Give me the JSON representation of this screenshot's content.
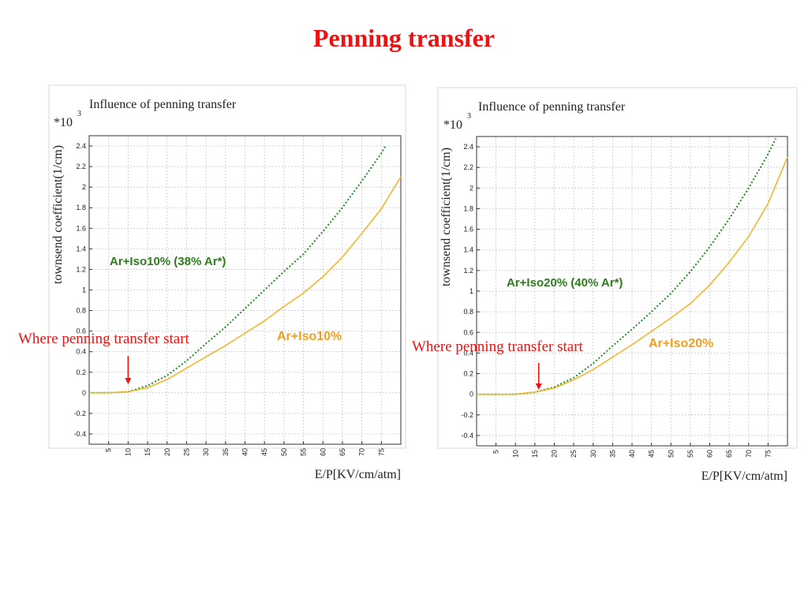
{
  "slide": {
    "title": "Penning transfer"
  },
  "colors": {
    "title": "#ee1111",
    "annotation_red": "#ee1111",
    "dotted_series": "#228b22",
    "solid_series": "#f5b52e",
    "grid": "#c8c8c8"
  },
  "chart_data": [
    {
      "type": "line",
      "title": "Influence of penning transfer",
      "multiplier": "*10",
      "multiplier_exp": "3",
      "xlabel": "E/P[KV/cm/atm]",
      "ylabel": "townsend coefficient(1/cm)",
      "xlim": [
        0,
        80
      ],
      "ylim": [
        -0.5,
        2.5
      ],
      "xticks": [
        5,
        10,
        15,
        20,
        25,
        30,
        35,
        40,
        45,
        50,
        55,
        60,
        65,
        70,
        75
      ],
      "yticks": [
        -0.4,
        -0.2,
        0,
        0.2,
        0.4,
        0.6,
        0.8,
        1,
        1.2,
        1.4,
        1.6,
        1.8,
        2,
        2.2,
        2.4
      ],
      "ytick_labels": [
        "-0.4",
        "-0.2",
        "0",
        "0.2",
        "0.4",
        "0.6",
        "0.8",
        "1",
        "1.2",
        "1.4",
        "1.6",
        "1.8",
        "2",
        "2.2",
        "2.4"
      ],
      "grid": true,
      "series": [
        {
          "style": "dotted",
          "color": "#228b22",
          "x": [
            0,
            5,
            10,
            15,
            20,
            25,
            30,
            35,
            40,
            45,
            50,
            55,
            60,
            65,
            70,
            75,
            76
          ],
          "y": [
            0,
            0,
            0.01,
            0.07,
            0.17,
            0.31,
            0.48,
            0.64,
            0.82,
            1.0,
            1.18,
            1.35,
            1.57,
            1.8,
            2.06,
            2.33,
            2.4
          ]
        },
        {
          "style": "solid",
          "color": "#f5b52e",
          "x": [
            0,
            5,
            10,
            15,
            20,
            25,
            30,
            35,
            40,
            45,
            50,
            55,
            60,
            65,
            70,
            75,
            80
          ],
          "y": [
            0,
            0,
            0.01,
            0.05,
            0.13,
            0.24,
            0.35,
            0.46,
            0.58,
            0.7,
            0.84,
            0.97,
            1.13,
            1.32,
            1.55,
            1.79,
            2.1
          ]
        }
      ],
      "annotations": {
        "green_label": "Ar+Iso10% (38% Ar*)",
        "orange_label": "Ar+Iso10%",
        "penning_note": "Where penning transfer start",
        "arrow_x": 10
      }
    },
    {
      "type": "line",
      "title": "Influence of penning transfer",
      "multiplier": "*10",
      "multiplier_exp": "3",
      "xlabel": "E/P[KV/cm/atm]",
      "ylabel": "townsend coefficient(1/cm)",
      "xlim": [
        0,
        80
      ],
      "ylim": [
        -0.5,
        2.5
      ],
      "xticks": [
        5,
        10,
        15,
        20,
        25,
        30,
        35,
        40,
        45,
        50,
        55,
        60,
        65,
        70,
        75
      ],
      "yticks": [
        -0.4,
        -0.2,
        0,
        0.2,
        0.4,
        0.6,
        0.8,
        1,
        1.2,
        1.4,
        1.6,
        1.8,
        2,
        2.2,
        2.4
      ],
      "ytick_labels": [
        "-0.4",
        "-0.2",
        "0",
        "0.2",
        "0.4",
        "0.6",
        "0.8",
        "1",
        "1.2",
        "1.4",
        "1.6",
        "1.8",
        "2",
        "2.2",
        "2.4"
      ],
      "grid": true,
      "series": [
        {
          "style": "dotted",
          "color": "#228b22",
          "x": [
            0,
            5,
            10,
            15,
            20,
            25,
            30,
            35,
            40,
            45,
            50,
            55,
            60,
            65,
            70,
            75,
            77
          ],
          "y": [
            0,
            0,
            0,
            0.02,
            0.07,
            0.16,
            0.3,
            0.47,
            0.63,
            0.8,
            0.98,
            1.19,
            1.43,
            1.7,
            2.0,
            2.33,
            2.48
          ]
        },
        {
          "style": "solid",
          "color": "#f5b52e",
          "x": [
            0,
            5,
            10,
            15,
            20,
            25,
            30,
            35,
            40,
            45,
            50,
            55,
            60,
            65,
            70,
            75,
            80
          ],
          "y": [
            0,
            0,
            0,
            0.02,
            0.06,
            0.14,
            0.24,
            0.36,
            0.48,
            0.61,
            0.74,
            0.88,
            1.06,
            1.28,
            1.53,
            1.85,
            2.3
          ]
        }
      ],
      "annotations": {
        "green_label": "Ar+Iso20% (40% Ar*)",
        "orange_label": "Ar+Iso20%",
        "penning_note": "Where penning transfer start",
        "arrow_x": 16
      }
    }
  ]
}
